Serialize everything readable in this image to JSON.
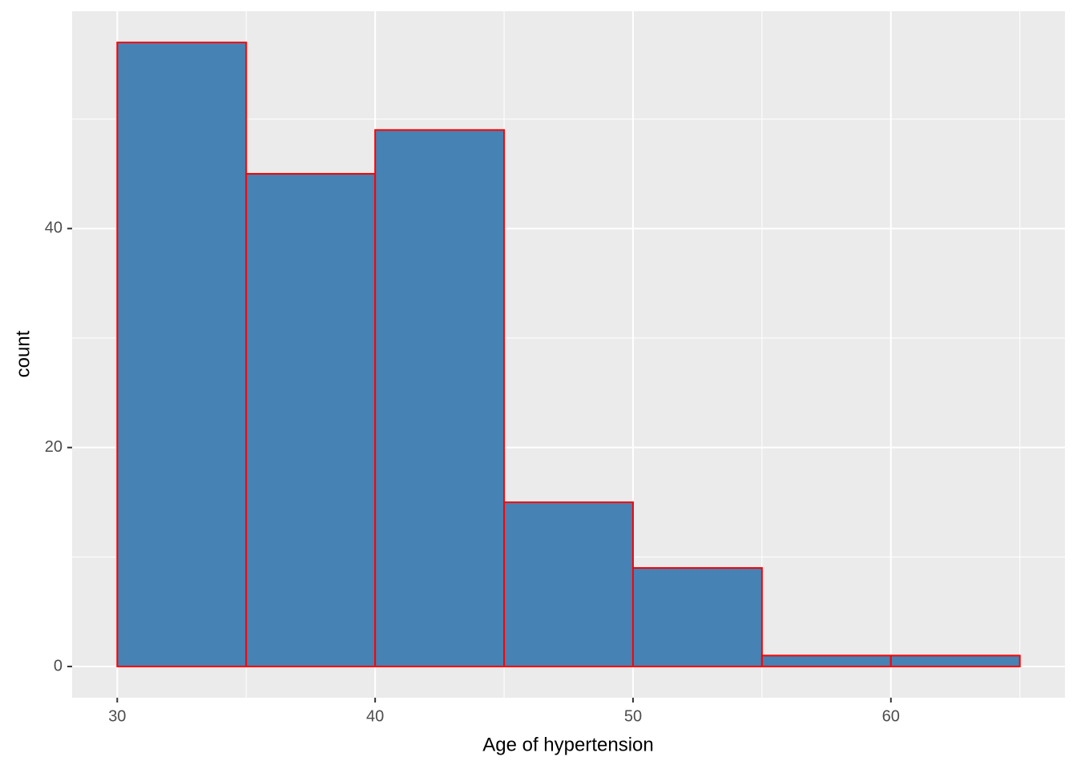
{
  "chart_data": {
    "type": "histogram",
    "x_label": "Age of hypertension",
    "y_label": "count",
    "bins": [
      30,
      35,
      40,
      45,
      50,
      55,
      60,
      65
    ],
    "counts": [
      57,
      45,
      49,
      15,
      9,
      1,
      1
    ],
    "fill": "#4682b4",
    "edge_color": "#ff0000",
    "xlim": [
      28.25,
      66.75
    ],
    "ylim": [
      -2.85,
      59.85
    ],
    "xticks": [
      30,
      40,
      50,
      60
    ],
    "yticks": [
      0,
      20,
      40
    ],
    "x_minor_grid": [
      35,
      45,
      55,
      65
    ],
    "y_minor_grid": [
      10,
      30,
      50
    ],
    "grid": true
  }
}
